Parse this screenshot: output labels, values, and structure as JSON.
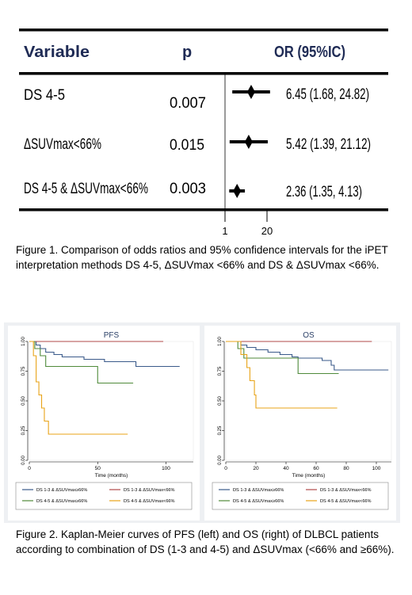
{
  "forest": {
    "headers": {
      "variable": "Variable",
      "p": "p",
      "or": "OR (95%IC)"
    },
    "rows": [
      {
        "variable": "DS 4-5",
        "p": "0.007",
        "or_text": "6.45 (1.68, 24.82)",
        "or": 6.45,
        "lo": 1.68,
        "hi": 24.82
      },
      {
        "variable": "ΔSUVmax<66%",
        "p": "0.015",
        "or_text": "5.42 (1.39, 21.12)",
        "or": 5.42,
        "lo": 1.39,
        "hi": 21.12
      },
      {
        "variable": "DS 4-5 & ΔSUVmax<66%",
        "p": "0.003",
        "or_text": "2.36 (1.35, 4.13)",
        "or": 2.36,
        "lo": 1.35,
        "hi": 4.13
      }
    ],
    "axis_ticks": [
      "1",
      "20"
    ]
  },
  "caption1": "Figure 1. Comparison of odds ratios and 95% confidence intervals for the iPET interpretation methods DS 4-5, ΔSUVmax <66% and DS & ΔSUVmax <66%.",
  "caption2": "Figure 2. Kaplan-Meier curves of PFS (left) and OS (right) of DLBCL patients according to combination of DS (1-3 and 4-5) and ΔSUVmax (<66% and ≥66%).",
  "colors": {
    "blue": "#3a5a8a",
    "red": "#b04a4a",
    "green": "#4f8a3a",
    "orange": "#e8a317"
  },
  "chart_data": [
    {
      "type": "line",
      "title": "PFS",
      "xlabel": "Time (months)",
      "ylabel": "",
      "xlim": [
        0,
        120
      ],
      "ylim": [
        0,
        1
      ],
      "x_ticks": [
        "0",
        "50",
        "100"
      ],
      "y_ticks": [
        "0.00",
        "0.25",
        "0.50",
        "0.75",
        "1.00"
      ],
      "series": [
        {
          "name": "DS 1-3 & ΔSUVmax≥66%",
          "color": "blue",
          "x": [
            0,
            5,
            8,
            12,
            18,
            24,
            40,
            55,
            70,
            78,
            110
          ],
          "y": [
            1.0,
            0.97,
            0.94,
            0.91,
            0.89,
            0.87,
            0.85,
            0.83,
            0.83,
            0.79,
            0.79
          ]
        },
        {
          "name": "DS 1-3 & ΔSUVmax<66%",
          "color": "red",
          "x": [
            0,
            98
          ],
          "y": [
            1.0,
            1.0
          ]
        },
        {
          "name": "DS 4-5 & ΔSUVmax≥66%",
          "color": "green",
          "x": [
            0,
            4,
            8,
            12,
            50,
            50,
            76
          ],
          "y": [
            1.0,
            0.94,
            0.88,
            0.79,
            0.79,
            0.65,
            0.65
          ]
        },
        {
          "name": "DS 4-5 & ΔSUVmax<66%",
          "color": "orange",
          "x": [
            0,
            3,
            5,
            7,
            9,
            11,
            14,
            72
          ],
          "y": [
            1.0,
            0.88,
            0.66,
            0.55,
            0.44,
            0.33,
            0.22,
            0.22
          ]
        }
      ]
    },
    {
      "type": "line",
      "title": "OS",
      "xlabel": "Time (months)",
      "ylabel": "",
      "xlim": [
        0,
        110
      ],
      "ylim": [
        0,
        1
      ],
      "x_ticks": [
        "0",
        "20",
        "40",
        "60",
        "80",
        "100"
      ],
      "y_ticks": [
        "0.00",
        "0.25",
        "0.50",
        "0.75",
        "1.00"
      ],
      "series": [
        {
          "name": "DS 1-3 & ΔSUVmax≥66%",
          "color": "blue",
          "x": [
            0,
            10,
            14,
            20,
            28,
            36,
            44,
            48,
            60,
            64,
            70,
            72,
            108
          ],
          "y": [
            1.0,
            0.97,
            0.95,
            0.93,
            0.91,
            0.89,
            0.87,
            0.86,
            0.86,
            0.84,
            0.8,
            0.76,
            0.76
          ]
        },
        {
          "name": "DS 1-3 & ΔSUVmax<66%",
          "color": "red",
          "x": [
            0,
            97
          ],
          "y": [
            1.0,
            1.0
          ]
        },
        {
          "name": "DS 4-5 & ΔSUVmax≥66%",
          "color": "green",
          "x": [
            0,
            8,
            12,
            48,
            48,
            75
          ],
          "y": [
            1.0,
            0.94,
            0.86,
            0.86,
            0.73,
            0.73
          ]
        },
        {
          "name": "DS 4-5 & ΔSUVmax<66%",
          "color": "orange",
          "x": [
            0,
            10,
            14,
            16,
            19,
            20,
            74
          ],
          "y": [
            1.0,
            0.89,
            0.78,
            0.67,
            0.55,
            0.44,
            0.44
          ]
        }
      ]
    }
  ]
}
